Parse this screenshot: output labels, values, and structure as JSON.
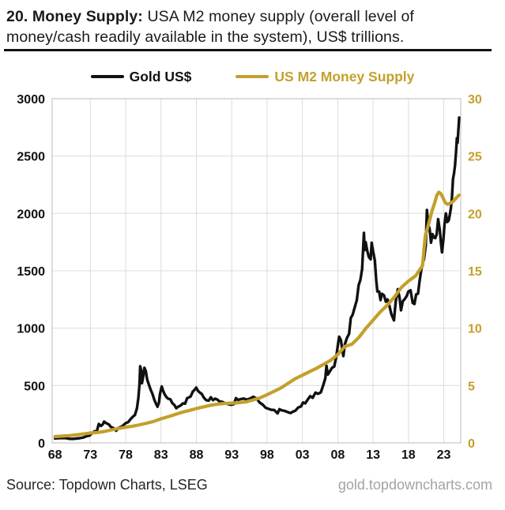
{
  "title": {
    "bold": "20. Money Supply:",
    "line1": "USA M2 money supply (overall level of",
    "line2": "money/cash readily available in the system), US$ trillions."
  },
  "legend": [
    {
      "label": "Gold US$",
      "color": "#111111"
    },
    {
      "label": "US M2 Money Supply",
      "color": "#C4A02A"
    }
  ],
  "footer": {
    "source": "Source: Topdown Charts, LSEG",
    "watermark": "gold.topdowncharts.com"
  },
  "chart_data": {
    "type": "line",
    "grid": true,
    "legend_position": "top",
    "x_range": [
      1967.6,
      2025.4
    ],
    "x_ticks": [
      {
        "year": 1968,
        "label": "68"
      },
      {
        "year": 1973,
        "label": "73"
      },
      {
        "year": 1978,
        "label": "78"
      },
      {
        "year": 1983,
        "label": "83"
      },
      {
        "year": 1988,
        "label": "88"
      },
      {
        "year": 1993,
        "label": "93"
      },
      {
        "year": 1998,
        "label": "98"
      },
      {
        "year": 2003,
        "label": "03"
      },
      {
        "year": 2008,
        "label": "08"
      },
      {
        "year": 2013,
        "label": "13"
      },
      {
        "year": 2018,
        "label": "18"
      },
      {
        "year": 2023,
        "label": "23"
      }
    ],
    "x_gridlines": [
      1973,
      1978,
      1983,
      1988,
      1993,
      1998,
      2003,
      2008,
      2013,
      2018,
      2023
    ],
    "x_axis": {
      "color": "#111111"
    },
    "left_axis": {
      "min": 0,
      "max": 3000,
      "ticks": [
        0,
        500,
        1000,
        1500,
        2000,
        2500,
        3000
      ],
      "color": "#111111"
    },
    "right_axis": {
      "min": 0,
      "max": 30,
      "ticks": [
        0,
        5,
        10,
        15,
        20,
        25,
        30
      ],
      "color": "#C4A02A"
    },
    "series": [
      {
        "name": "Gold US$",
        "axis": "left",
        "color": "#111111",
        "width": 3.4,
        "data_name": "gold-line",
        "points": [
          [
            1968.0,
            39
          ],
          [
            1968.4,
            41
          ],
          [
            1968.8,
            42
          ],
          [
            1969.2,
            43
          ],
          [
            1969.6,
            41
          ],
          [
            1970.0,
            36
          ],
          [
            1970.5,
            35
          ],
          [
            1971.0,
            38
          ],
          [
            1971.5,
            41
          ],
          [
            1972.0,
            47
          ],
          [
            1972.5,
            59
          ],
          [
            1972.9,
            64
          ],
          [
            1973.3,
            88
          ],
          [
            1973.6,
            102
          ],
          [
            1973.9,
            98
          ],
          [
            1974.2,
            165
          ],
          [
            1974.5,
            148
          ],
          [
            1974.75,
            160
          ],
          [
            1974.95,
            186
          ],
          [
            1975.25,
            172
          ],
          [
            1975.6,
            162
          ],
          [
            1975.9,
            140
          ],
          [
            1976.3,
            128
          ],
          [
            1976.65,
            106
          ],
          [
            1977.0,
            131
          ],
          [
            1977.5,
            145
          ],
          [
            1978.0,
            172
          ],
          [
            1978.35,
            181
          ],
          [
            1978.7,
            208
          ],
          [
            1979.0,
            228
          ],
          [
            1979.3,
            243
          ],
          [
            1979.6,
            302
          ],
          [
            1979.8,
            392
          ],
          [
            1979.95,
            510
          ],
          [
            1980.05,
            668
          ],
          [
            1980.2,
            630
          ],
          [
            1980.3,
            520
          ],
          [
            1980.5,
            585
          ],
          [
            1980.65,
            655
          ],
          [
            1980.85,
            625
          ],
          [
            1981.05,
            550
          ],
          [
            1981.3,
            505
          ],
          [
            1981.55,
            460
          ],
          [
            1981.8,
            425
          ],
          [
            1982.05,
            375
          ],
          [
            1982.3,
            340
          ],
          [
            1982.5,
            315
          ],
          [
            1982.7,
            350
          ],
          [
            1982.85,
            425
          ],
          [
            1983.1,
            492
          ],
          [
            1983.3,
            455
          ],
          [
            1983.5,
            425
          ],
          [
            1983.75,
            400
          ],
          [
            1984.0,
            385
          ],
          [
            1984.3,
            381
          ],
          [
            1984.6,
            346
          ],
          [
            1984.9,
            330
          ],
          [
            1985.15,
            302
          ],
          [
            1985.5,
            318
          ],
          [
            1985.8,
            327
          ],
          [
            1986.1,
            345
          ],
          [
            1986.4,
            342
          ],
          [
            1986.7,
            390
          ],
          [
            1986.9,
            395
          ],
          [
            1987.2,
            405
          ],
          [
            1987.5,
            448
          ],
          [
            1987.75,
            462
          ],
          [
            1987.98,
            482
          ],
          [
            1988.25,
            452
          ],
          [
            1988.5,
            438
          ],
          [
            1988.75,
            428
          ],
          [
            1989.05,
            394
          ],
          [
            1989.4,
            372
          ],
          [
            1989.75,
            368
          ],
          [
            1990.05,
            398
          ],
          [
            1990.35,
            372
          ],
          [
            1990.65,
            385
          ],
          [
            1990.95,
            378
          ],
          [
            1991.3,
            360
          ],
          [
            1991.7,
            357
          ],
          [
            1992.1,
            344
          ],
          [
            1992.5,
            338
          ],
          [
            1992.9,
            332
          ],
          [
            1993.3,
            338
          ],
          [
            1993.6,
            390
          ],
          [
            1993.9,
            375
          ],
          [
            1994.3,
            382
          ],
          [
            1994.7,
            387
          ],
          [
            1995.1,
            377
          ],
          [
            1995.6,
            386
          ],
          [
            1996.05,
            402
          ],
          [
            1996.5,
            388
          ],
          [
            1996.95,
            352
          ],
          [
            1997.4,
            332
          ],
          [
            1997.8,
            306
          ],
          [
            1998.2,
            297
          ],
          [
            1998.6,
            288
          ],
          [
            1999.0,
            287
          ],
          [
            1999.5,
            257
          ],
          [
            1999.75,
            294
          ],
          [
            2000.05,
            284
          ],
          [
            2000.5,
            279
          ],
          [
            2000.95,
            268
          ],
          [
            2001.3,
            260
          ],
          [
            2001.65,
            272
          ],
          [
            2002.0,
            281
          ],
          [
            2002.4,
            308
          ],
          [
            2002.8,
            318
          ],
          [
            2003.1,
            352
          ],
          [
            2003.4,
            345
          ],
          [
            2003.8,
            382
          ],
          [
            2004.1,
            408
          ],
          [
            2004.45,
            393
          ],
          [
            2004.85,
            438
          ],
          [
            2005.2,
            428
          ],
          [
            2005.6,
            440
          ],
          [
            2005.95,
            502
          ],
          [
            2006.25,
            565
          ],
          [
            2006.4,
            672
          ],
          [
            2006.6,
            596
          ],
          [
            2006.9,
            625
          ],
          [
            2007.2,
            655
          ],
          [
            2007.5,
            665
          ],
          [
            2007.8,
            755
          ],
          [
            2008.1,
            890
          ],
          [
            2008.2,
            925
          ],
          [
            2008.45,
            895
          ],
          [
            2008.6,
            830
          ],
          [
            2008.8,
            757
          ],
          [
            2009.0,
            858
          ],
          [
            2009.3,
            915
          ],
          [
            2009.6,
            950
          ],
          [
            2009.85,
            1090
          ],
          [
            2010.1,
            1115
          ],
          [
            2010.4,
            1180
          ],
          [
            2010.7,
            1245
          ],
          [
            2010.95,
            1375
          ],
          [
            2011.2,
            1420
          ],
          [
            2011.45,
            1515
          ],
          [
            2011.7,
            1830
          ],
          [
            2011.8,
            1680
          ],
          [
            2011.95,
            1750
          ],
          [
            2012.15,
            1680
          ],
          [
            2012.4,
            1620
          ],
          [
            2012.65,
            1600
          ],
          [
            2012.8,
            1745
          ],
          [
            2013.0,
            1670
          ],
          [
            2013.25,
            1590
          ],
          [
            2013.45,
            1415
          ],
          [
            2013.6,
            1320
          ],
          [
            2013.85,
            1320
          ],
          [
            2014.05,
            1245
          ],
          [
            2014.25,
            1300
          ],
          [
            2014.55,
            1285
          ],
          [
            2014.8,
            1230
          ],
          [
            2015.05,
            1250
          ],
          [
            2015.3,
            1195
          ],
          [
            2015.6,
            1120
          ],
          [
            2015.95,
            1068
          ],
          [
            2016.2,
            1230
          ],
          [
            2016.5,
            1340
          ],
          [
            2016.75,
            1265
          ],
          [
            2016.95,
            1155
          ],
          [
            2017.2,
            1235
          ],
          [
            2017.5,
            1255
          ],
          [
            2017.75,
            1280
          ],
          [
            2018.0,
            1320
          ],
          [
            2018.3,
            1330
          ],
          [
            2018.6,
            1220
          ],
          [
            2018.85,
            1210
          ],
          [
            2019.1,
            1295
          ],
          [
            2019.35,
            1300
          ],
          [
            2019.6,
            1420
          ],
          [
            2019.8,
            1500
          ],
          [
            2020.0,
            1565
          ],
          [
            2020.2,
            1600
          ],
          [
            2020.45,
            1720
          ],
          [
            2020.62,
            2030
          ],
          [
            2020.8,
            1905
          ],
          [
            2021.0,
            1865
          ],
          [
            2021.2,
            1745
          ],
          [
            2021.4,
            1820
          ],
          [
            2021.6,
            1790
          ],
          [
            2021.8,
            1785
          ],
          [
            2022.0,
            1820
          ],
          [
            2022.2,
            1950
          ],
          [
            2022.45,
            1850
          ],
          [
            2022.6,
            1740
          ],
          [
            2022.75,
            1660
          ],
          [
            2022.95,
            1775
          ],
          [
            2023.1,
            1900
          ],
          [
            2023.3,
            2000
          ],
          [
            2023.5,
            1925
          ],
          [
            2023.7,
            1940
          ],
          [
            2023.85,
            1985
          ],
          [
            2024.0,
            2045
          ],
          [
            2024.15,
            2130
          ],
          [
            2024.3,
            2300
          ],
          [
            2024.45,
            2350
          ],
          [
            2024.6,
            2420
          ],
          [
            2024.75,
            2550
          ],
          [
            2024.85,
            2655
          ],
          [
            2024.95,
            2615
          ],
          [
            2025.05,
            2715
          ],
          [
            2025.18,
            2835
          ]
        ]
      },
      {
        "name": "US M2 Money Supply",
        "axis": "right",
        "color": "#C4A02A",
        "width": 4.2,
        "data_name": "m2-line",
        "points": [
          [
            1968.0,
            0.55
          ],
          [
            1969.0,
            0.59
          ],
          [
            1970.0,
            0.63
          ],
          [
            1971.0,
            0.7
          ],
          [
            1972.0,
            0.78
          ],
          [
            1973.0,
            0.86
          ],
          [
            1974.0,
            0.91
          ],
          [
            1975.0,
            1.0
          ],
          [
            1976.0,
            1.13
          ],
          [
            1977.0,
            1.26
          ],
          [
            1978.0,
            1.36
          ],
          [
            1979.0,
            1.46
          ],
          [
            1980.0,
            1.58
          ],
          [
            1981.0,
            1.72
          ],
          [
            1982.0,
            1.88
          ],
          [
            1983.0,
            2.1
          ],
          [
            1984.0,
            2.28
          ],
          [
            1985.0,
            2.48
          ],
          [
            1986.0,
            2.68
          ],
          [
            1987.0,
            2.83
          ],
          [
            1988.0,
            2.99
          ],
          [
            1989.0,
            3.14
          ],
          [
            1990.0,
            3.28
          ],
          [
            1991.0,
            3.38
          ],
          [
            1992.0,
            3.44
          ],
          [
            1993.0,
            3.47
          ],
          [
            1994.0,
            3.5
          ],
          [
            1995.0,
            3.57
          ],
          [
            1996.0,
            3.74
          ],
          [
            1997.0,
            3.92
          ],
          [
            1998.0,
            4.2
          ],
          [
            1999.0,
            4.5
          ],
          [
            2000.0,
            4.8
          ],
          [
            2001.0,
            5.2
          ],
          [
            2002.0,
            5.6
          ],
          [
            2003.0,
            5.9
          ],
          [
            2004.0,
            6.2
          ],
          [
            2005.0,
            6.5
          ],
          [
            2006.0,
            6.85
          ],
          [
            2007.0,
            7.2
          ],
          [
            2008.0,
            7.7
          ],
          [
            2009.0,
            8.4
          ],
          [
            2010.0,
            8.6
          ],
          [
            2011.0,
            9.2
          ],
          [
            2012.0,
            10.0
          ],
          [
            2013.0,
            10.7
          ],
          [
            2014.0,
            11.4
          ],
          [
            2015.0,
            12.0
          ],
          [
            2016.0,
            12.7
          ],
          [
            2017.0,
            13.55
          ],
          [
            2018.0,
            14.1
          ],
          [
            2019.0,
            14.55
          ],
          [
            2019.5,
            15.0
          ],
          [
            2020.0,
            15.45
          ],
          [
            2020.2,
            16.9
          ],
          [
            2020.4,
            18.1
          ],
          [
            2020.65,
            18.6
          ],
          [
            2021.0,
            19.4
          ],
          [
            2021.35,
            20.25
          ],
          [
            2021.7,
            20.9
          ],
          [
            2022.0,
            21.55
          ],
          [
            2022.3,
            21.85
          ],
          [
            2022.6,
            21.7
          ],
          [
            2022.9,
            21.35
          ],
          [
            2023.2,
            20.95
          ],
          [
            2023.5,
            20.8
          ],
          [
            2023.8,
            20.85
          ],
          [
            2024.1,
            20.95
          ],
          [
            2024.4,
            21.1
          ],
          [
            2024.7,
            21.3
          ],
          [
            2025.0,
            21.5
          ],
          [
            2025.18,
            21.6
          ]
        ]
      }
    ]
  }
}
